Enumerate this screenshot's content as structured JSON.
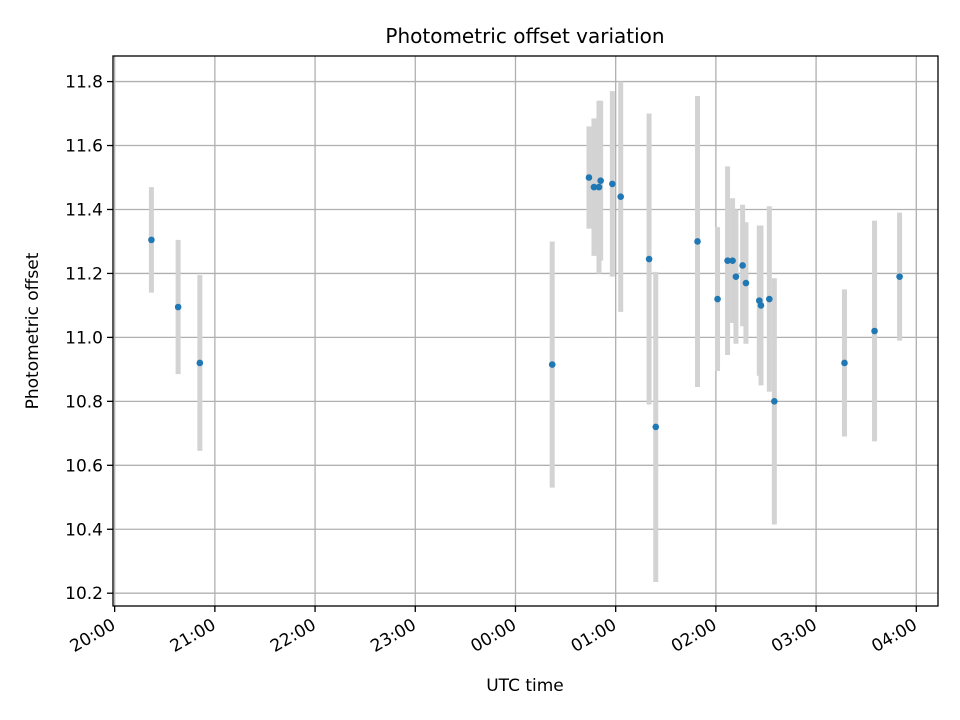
{
  "chart_data": {
    "type": "scatter",
    "title": "Photometric offset variation",
    "xlabel": "UTC time",
    "ylabel": "Photometric offset",
    "x_unit": "hours (UTC, continuing past midnight)",
    "xlim": [
      "19:59",
      "04:13"
    ],
    "ylim": [
      10.16,
      11.88
    ],
    "xticks": [
      "20:00",
      "21:00",
      "22:00",
      "23:00",
      "00:00",
      "01:00",
      "02:00",
      "03:00",
      "04:00"
    ],
    "yticks": [
      "10.2",
      "10.4",
      "10.6",
      "10.8",
      "11.0",
      "11.2",
      "11.4",
      "11.6",
      "11.8"
    ],
    "grid": true,
    "marker_color": "#1f77b4",
    "errorbar_color": "#d3d3d3",
    "points": [
      {
        "x": "20:22",
        "y": 11.305,
        "yerr": 0.165
      },
      {
        "x": "20:38",
        "y": 11.095,
        "yerr": 0.21
      },
      {
        "x": "20:51",
        "y": 10.92,
        "yerr": 0.275
      },
      {
        "x": "00:22",
        "y": 10.915,
        "yerr": 0.385
      },
      {
        "x": "00:44",
        "y": 11.5,
        "yerr": 0.16
      },
      {
        "x": "00:47",
        "y": 11.47,
        "yerr": 0.215
      },
      {
        "x": "00:50",
        "y": 11.47,
        "yerr": 0.27
      },
      {
        "x": "00:51",
        "y": 11.49,
        "yerr": 0.25
      },
      {
        "x": "00:58",
        "y": 11.48,
        "yerr": 0.29
      },
      {
        "x": "01:03",
        "y": 11.44,
        "yerr": 0.36
      },
      {
        "x": "01:20",
        "y": 11.245,
        "yerr": 0.455
      },
      {
        "x": "01:24",
        "y": 10.72,
        "yerr": 0.485
      },
      {
        "x": "01:49",
        "y": 11.3,
        "yerr": 0.455
      },
      {
        "x": "02:01",
        "y": 11.12,
        "yerr": 0.225
      },
      {
        "x": "02:07",
        "y": 11.24,
        "yerr": 0.295
      },
      {
        "x": "02:10",
        "y": 11.24,
        "yerr": 0.195
      },
      {
        "x": "02:12",
        "y": 11.19,
        "yerr": 0.21
      },
      {
        "x": "02:16",
        "y": 11.225,
        "yerr": 0.19
      },
      {
        "x": "02:18",
        "y": 11.17,
        "yerr": 0.19
      },
      {
        "x": "02:26",
        "y": 11.115,
        "yerr": 0.235
      },
      {
        "x": "02:27",
        "y": 11.1,
        "yerr": 0.25
      },
      {
        "x": "02:32",
        "y": 11.12,
        "yerr": 0.29
      },
      {
        "x": "02:35",
        "y": 10.8,
        "yerr": 0.385
      },
      {
        "x": "03:17",
        "y": 10.92,
        "yerr": 0.23
      },
      {
        "x": "03:35",
        "y": 11.02,
        "yerr": 0.345
      },
      {
        "x": "03:50",
        "y": 11.19,
        "yerr": 0.2
      }
    ]
  }
}
